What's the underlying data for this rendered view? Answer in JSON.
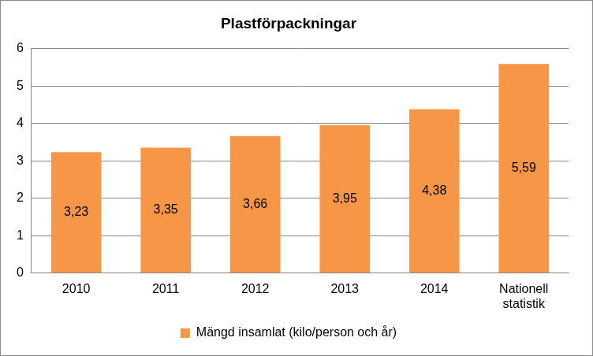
{
  "chart_data": {
    "type": "bar",
    "title": "Plastförpackningar",
    "categories": [
      "2010",
      "2011",
      "2012",
      "2013",
      "2014",
      "Nationell statistik"
    ],
    "series": [
      {
        "name": "Mängd insamlat (kilo/person och år)",
        "color": "#f79646",
        "values": [
          3.23,
          3.35,
          3.66,
          3.95,
          4.38,
          5.59
        ],
        "value_labels": [
          "3,23",
          "3,35",
          "3,66",
          "3,95",
          "4,38",
          "5,59"
        ]
      }
    ],
    "ylim": [
      0,
      6
    ],
    "yticks": [
      0,
      1,
      2,
      3,
      4,
      5,
      6
    ],
    "grid": true,
    "legend": "bottom",
    "data_labels": true
  }
}
